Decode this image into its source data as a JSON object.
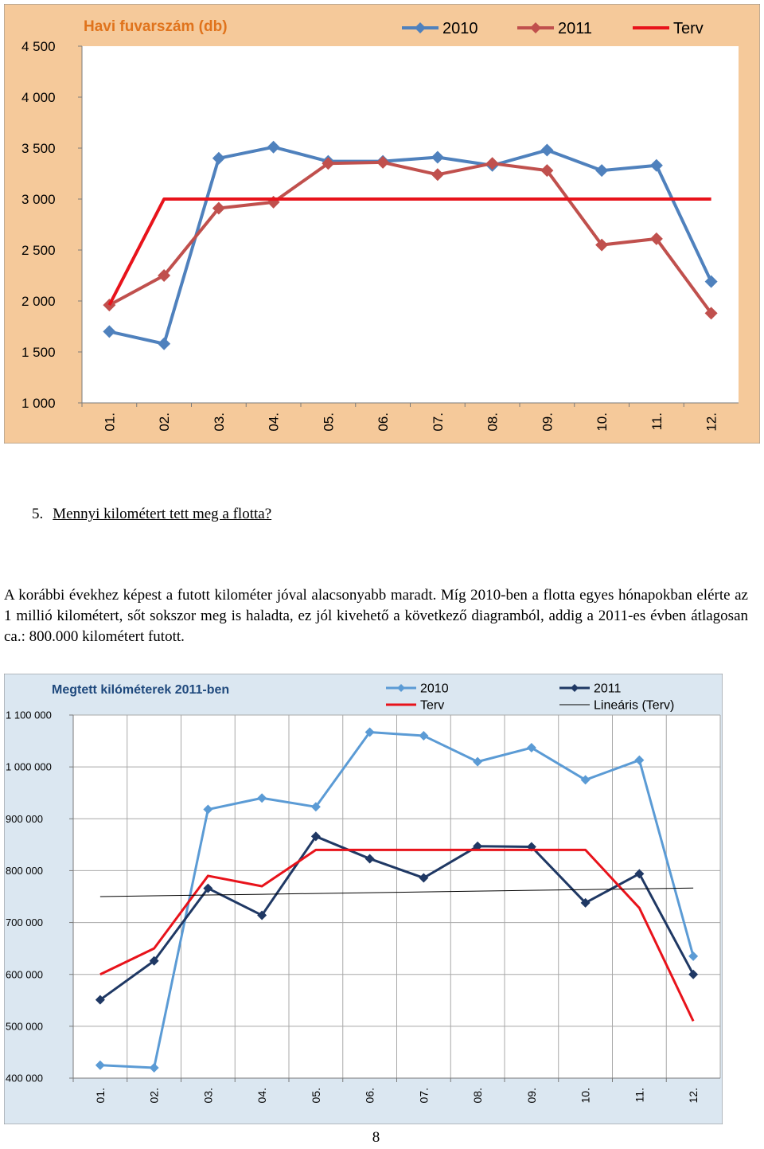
{
  "question": {
    "number": "5.",
    "text": "Mennyi kilométert tett meg a flotta?"
  },
  "paragraph": "A korábbi évekhez képest a futott kilométer jóval alacsonyabb maradt. Míg 2010-ben a flotta egyes hónapokban elérte az 1 millió kilométert, sőt sokszor meg is haladta, ez jól kivehető a következő diagramból, addig a 2011-es évben átlagosan ca.: 800.000 kilométert futott.",
  "page_number": "8",
  "chart_data": [
    {
      "type": "line",
      "title": "Havi fuvarszám (db)",
      "categories": [
        "01.",
        "02.",
        "03.",
        "04.",
        "05.",
        "06.",
        "07.",
        "08.",
        "09.",
        "10.",
        "11.",
        "12."
      ],
      "ylim": [
        1000,
        4500
      ],
      "yticks": [
        1000,
        1500,
        2000,
        2500,
        3000,
        3500,
        4000,
        4500
      ],
      "ytick_labels": [
        "1 000",
        "1 500",
        "2 000",
        "2 500",
        "3 000",
        "3 500",
        "4 000",
        "4 500"
      ],
      "grid": false,
      "legend_position": "top",
      "background": "#f5c99a",
      "series": [
        {
          "name": "2010",
          "color": "#4f81bd",
          "marker": "diamond",
          "values": [
            1700,
            1580,
            3400,
            3510,
            3370,
            3370,
            3410,
            3330,
            3480,
            3280,
            3330,
            2190
          ]
        },
        {
          "name": "2011",
          "color": "#c0504d",
          "marker": "diamond",
          "values": [
            1960,
            2250,
            2910,
            2970,
            3350,
            3360,
            3240,
            3350,
            3280,
            2550,
            2610,
            1880
          ]
        },
        {
          "name": "Terv",
          "color": "#e8131b",
          "marker": "none",
          "values": [
            1960,
            3000,
            3000,
            3000,
            3000,
            3000,
            3000,
            3000,
            3000,
            3000,
            3000,
            3000
          ]
        }
      ]
    },
    {
      "type": "line",
      "title": "Megtett kilóméterek 2011-ben",
      "categories": [
        "01.",
        "02.",
        "03.",
        "04.",
        "05.",
        "06.",
        "07.",
        "08.",
        "09.",
        "10.",
        "11.",
        "12."
      ],
      "ylim": [
        400000,
        1100000
      ],
      "yticks": [
        400000,
        500000,
        600000,
        700000,
        800000,
        900000,
        1000000,
        1100000
      ],
      "ytick_labels": [
        "400 000",
        "500 000",
        "600 000",
        "700 000",
        "800 000",
        "900 000",
        "1 000 000",
        "1 100 000"
      ],
      "grid": true,
      "legend_position": "top",
      "background": "#dbe7f1",
      "series": [
        {
          "name": "2010",
          "color": "#5b9bd5",
          "marker": "diamond",
          "values": [
            425000,
            420000,
            918000,
            940000,
            923000,
            1067000,
            1060000,
            1010000,
            1037000,
            975000,
            1013000,
            635000
          ]
        },
        {
          "name": "2011",
          "color": "#1f3864",
          "marker": "diamond",
          "values": [
            551000,
            626000,
            766000,
            714000,
            866000,
            823000,
            786000,
            847000,
            846000,
            738000,
            794000,
            600000
          ]
        },
        {
          "name": "Terv",
          "color": "#e8131b",
          "marker": "none",
          "values": [
            600000,
            650000,
            790000,
            770000,
            840000,
            840000,
            840000,
            840000,
            840000,
            840000,
            728000,
            510000
          ]
        },
        {
          "name": "Lineáris (Terv)",
          "color": "#000000",
          "marker": "none",
          "values": [
            750000,
            751500,
            753000,
            754500,
            756000,
            757500,
            759000,
            760500,
            762000,
            763500,
            765000,
            766500
          ]
        }
      ]
    }
  ]
}
